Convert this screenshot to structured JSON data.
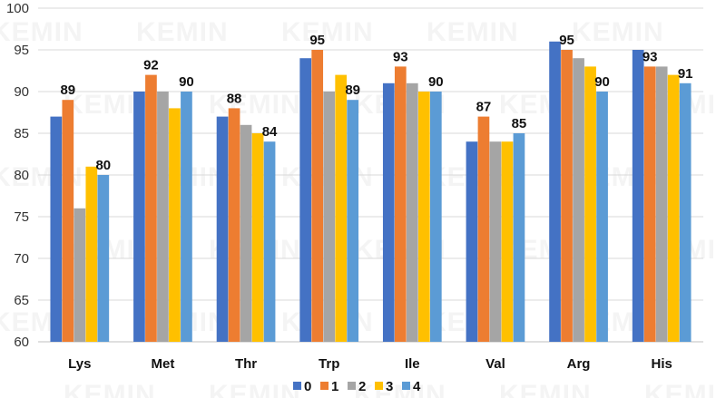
{
  "watermark": "KEMIN",
  "chart_data": {
    "type": "bar",
    "title": "",
    "xlabel": "",
    "ylabel": "",
    "ylim": [
      60,
      100
    ],
    "ytick_step": 5,
    "grid": true,
    "legend": "bottom-center",
    "categories": [
      "Lys",
      "Met",
      "Thr",
      "Trp",
      "Ile",
      "Val",
      "Arg",
      "His"
    ],
    "series": [
      {
        "name": "0",
        "color": "#4472C4",
        "values": [
          87,
          90,
          87,
          94,
          91,
          84,
          96,
          95
        ]
      },
      {
        "name": "1",
        "color": "#ED7D31",
        "values": [
          89,
          92,
          88,
          95,
          93,
          87,
          95,
          93
        ]
      },
      {
        "name": "2",
        "color": "#A5A5A5",
        "values": [
          76,
          90,
          86,
          90,
          91,
          84,
          94,
          93
        ]
      },
      {
        "name": "3",
        "color": "#FFC000",
        "values": [
          81,
          88,
          85,
          92,
          90,
          84,
          93,
          92
        ]
      },
      {
        "name": "4",
        "color": "#5B9BD5",
        "values": [
          80,
          90,
          84,
          89,
          90,
          85,
          90,
          91
        ]
      }
    ],
    "data_labels": [
      {
        "category": "Lys",
        "series": "1",
        "text": "89"
      },
      {
        "category": "Lys",
        "series": "4",
        "text": "80"
      },
      {
        "category": "Met",
        "series": "1",
        "text": "92"
      },
      {
        "category": "Met",
        "series": "4",
        "text": "90"
      },
      {
        "category": "Thr",
        "series": "1",
        "text": "88"
      },
      {
        "category": "Thr",
        "series": "4",
        "text": "84"
      },
      {
        "category": "Trp",
        "series": "1",
        "text": "95"
      },
      {
        "category": "Trp",
        "series": "4",
        "text": "89"
      },
      {
        "category": "Ile",
        "series": "1",
        "text": "93"
      },
      {
        "category": "Ile",
        "series": "4",
        "text": "90"
      },
      {
        "category": "Val",
        "series": "1",
        "text": "87"
      },
      {
        "category": "Val",
        "series": "4",
        "text": "85"
      },
      {
        "category": "Arg",
        "series": "1",
        "text": "95"
      },
      {
        "category": "Arg",
        "series": "4",
        "text": "90"
      },
      {
        "category": "His",
        "series": "1",
        "text": "93"
      },
      {
        "category": "His",
        "series": "4",
        "text": "91"
      }
    ]
  }
}
